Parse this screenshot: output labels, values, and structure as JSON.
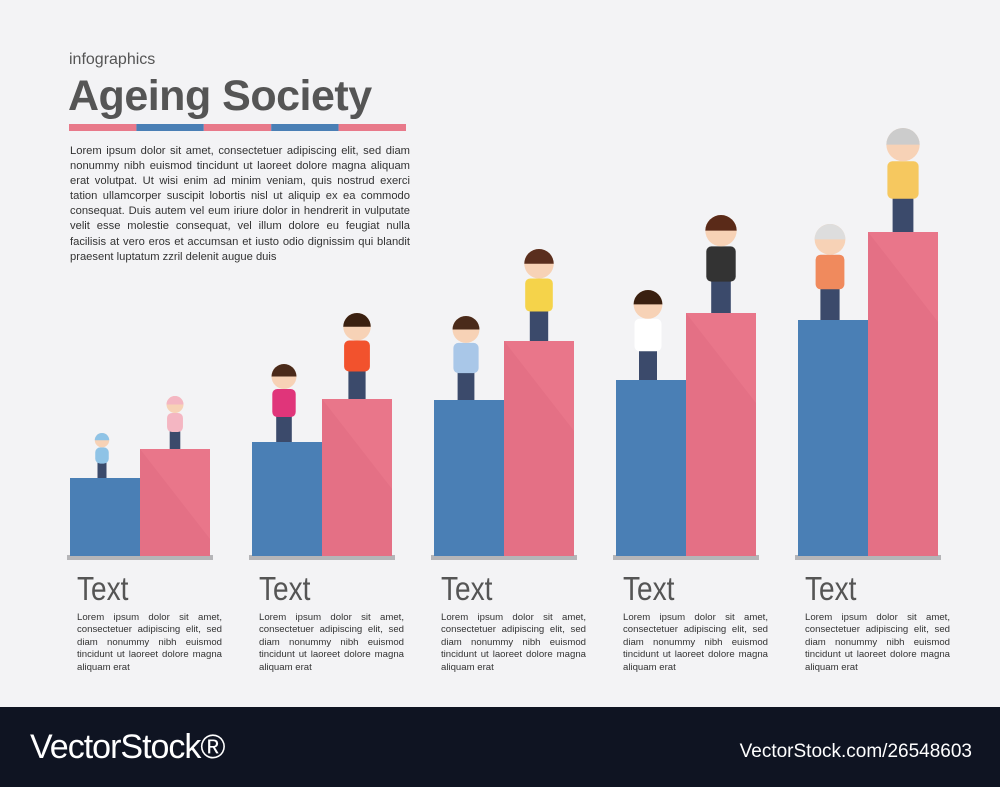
{
  "header": {
    "kicker": "infographics",
    "title": "Ageing Society",
    "intro": "Lorem ipsum dolor sit amet, consectetuer adipiscing elit, sed diam nonummy nibh euismod tincidunt ut laoreet dolore magna aliquam erat volutpat. Ut wisi enim ad minim veniam, quis nostrud exerci tation ullamcorper suscipit lobortis nisl ut aliquip ex ea commodo consequat. Duis autem vel eum iriure dolor in hendrerit in vulputate velit esse molestie consequat, vel illum dolore eu feugiat nulla facilisis at vero eros et accumsan et iusto odio dignissim qui blandit praesent luptatum zzril delenit augue duis"
  },
  "groups": [
    {
      "heading": "Text",
      "body": "Lorem ipsum dolor sit amet, consectetuer adipiscing elit, sed diam nonummy nibh euismod tincidunt ut laoreet dolore magna aliquam erat"
    },
    {
      "heading": "Text",
      "body": "Lorem ipsum dolor sit amet, consectetuer adipiscing elit, sed diam nonummy nibh euismod tincidunt ut laoreet dolore magna aliquam erat"
    },
    {
      "heading": "Text",
      "body": "Lorem ipsum dolor sit amet, consectetuer adipiscing elit, sed diam nonummy nibh euismod tincidunt ut laoreet dolore magna aliquam erat"
    },
    {
      "heading": "Text",
      "body": "Lorem ipsum dolor sit amet, consectetuer adipiscing elit, sed diam nonummy nibh euismod tincidunt ut laoreet dolore magna aliquam erat"
    },
    {
      "heading": "Text",
      "body": "Lorem ipsum dolor sit amet, consectetuer adipiscing elit, sed diam nonummy nibh euismod tincidunt ut laoreet dolore magna aliquam erat"
    }
  ],
  "footer": {
    "brand": "VectorStock®",
    "id": "VectorStock.com/26548603"
  }
}
